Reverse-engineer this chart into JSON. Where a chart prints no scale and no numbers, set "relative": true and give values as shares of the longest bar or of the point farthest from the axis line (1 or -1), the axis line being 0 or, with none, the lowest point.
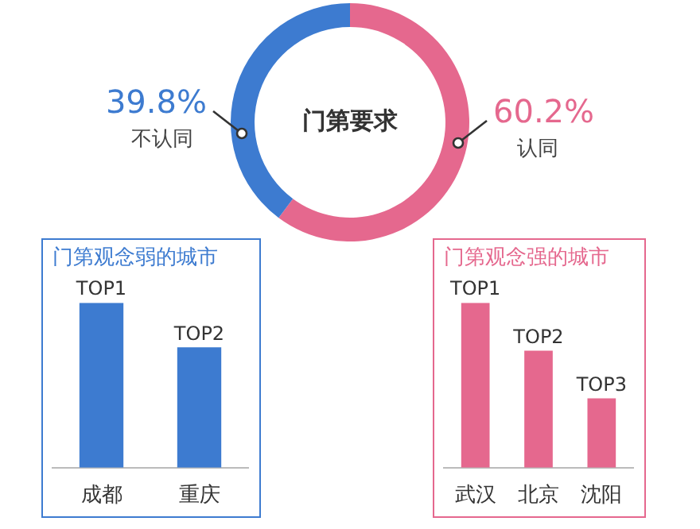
{
  "chart_data": [
    {
      "type": "donut",
      "title": "门第要求",
      "categories": [
        "认同",
        "不认同"
      ],
      "values": [
        60.2,
        39.8
      ],
      "colors": [
        "#e5688e",
        "#3d7bd0"
      ],
      "value_labels": [
        "60.2%",
        "39.8%"
      ]
    },
    {
      "type": "bar",
      "title": "门第观念弱的城市",
      "categories": [
        "成都",
        "重庆"
      ],
      "values": [
        1,
        0.73
      ],
      "color": "#3d7bd0",
      "relative": true,
      "annotations": [
        {
          "text": "TOP1",
          "x": "成都",
          "y": 1
        },
        {
          "text": "TOP2",
          "x": "重庆",
          "y": 0.73
        }
      ]
    },
    {
      "type": "bar",
      "title": "门第观念强的城市",
      "categories": [
        "武汉",
        "北京",
        "沈阳"
      ],
      "values": [
        1,
        0.71,
        0.42
      ],
      "color": "#e5688e",
      "relative": true,
      "annotations": [
        {
          "text": "TOP1",
          "x": "武汉",
          "y": 1
        },
        {
          "text": "TOP2",
          "x": "北京",
          "y": 0.71
        },
        {
          "text": "TOP3",
          "x": "沈阳",
          "y": 0.42
        }
      ]
    }
  ]
}
